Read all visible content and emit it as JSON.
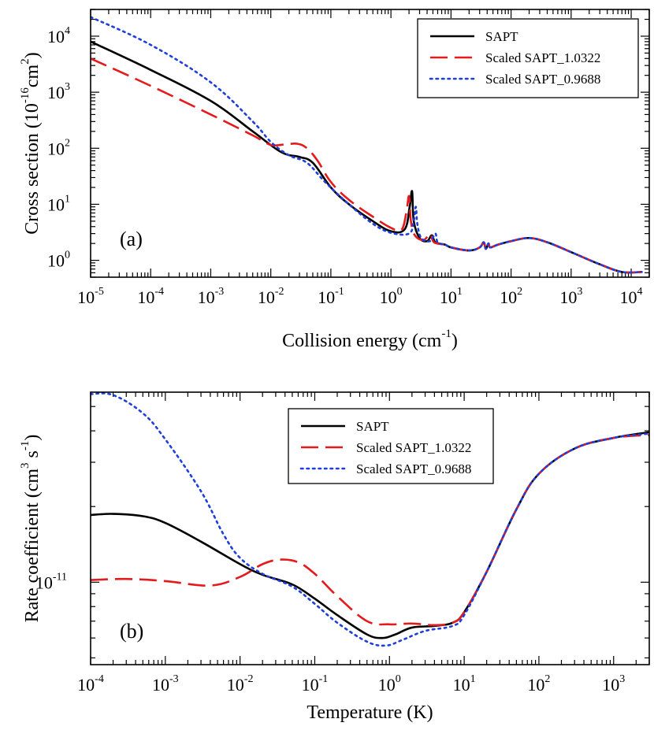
{
  "chart_data": [
    {
      "type": "line",
      "panel_label": "(a)",
      "xlabel": {
        "main": "Collision energy (cm",
        "sup": "-1",
        "tail": ")"
      },
      "ylabel": {
        "main": "Cross section (10",
        "sup": "-16",
        "mid": "cm",
        "sup2": "2",
        "tail": ")"
      },
      "xscale": "log",
      "yscale": "log",
      "xlim": [
        1e-05,
        20000.0
      ],
      "ylim": [
        0.5,
        30000.0
      ],
      "x_tick_exponents": [
        "-5",
        "-4",
        "-3",
        "-2",
        "-1",
        "0",
        "1",
        "2",
        "3",
        "4"
      ],
      "y_tick_exponents": [
        "0",
        "1",
        "2",
        "3",
        "4"
      ],
      "legend": {
        "location": "top-right",
        "entries": [
          "SAPT",
          "Scaled SAPT_1.0322",
          "Scaled SAPT_0.9688"
        ]
      },
      "series": [
        {
          "name": "SAPT",
          "color": "#000000",
          "dash": "solid",
          "points": [
            [
              1e-05,
              8000
            ],
            [
              0.0001,
              2500
            ],
            [
              0.001,
              700
            ],
            [
              0.005,
              200
            ],
            [
              0.015,
              85
            ],
            [
              0.03,
              70
            ],
            [
              0.05,
              55
            ],
            [
              0.1,
              20
            ],
            [
              0.2,
              10
            ],
            [
              0.5,
              5
            ],
            [
              1,
              3.3
            ],
            [
              1.7,
              3.6
            ],
            [
              2.05,
              9
            ],
            [
              2.25,
              17
            ],
            [
              2.4,
              5
            ],
            [
              3,
              2.5
            ],
            [
              4,
              2.2
            ],
            [
              4.8,
              2.8
            ],
            [
              5.5,
              2.1
            ],
            [
              8,
              1.9
            ],
            [
              10,
              1.7
            ],
            [
              20,
              1.5
            ],
            [
              30,
              1.7
            ],
            [
              35,
              2.1
            ],
            [
              38,
              1.6
            ],
            [
              42,
              2.0
            ],
            [
              45,
              1.7
            ],
            [
              60,
              1.9
            ],
            [
              100,
              2.2
            ],
            [
              200,
              2.5
            ],
            [
              400,
              2.1
            ],
            [
              1000,
              1.4
            ],
            [
              3000,
              0.85
            ],
            [
              7000,
              0.62
            ],
            [
              15000.0,
              0.62
            ]
          ]
        },
        {
          "name": "Scaled SAPT_1.0322",
          "color": "#e41a1c",
          "dash": "long",
          "points": [
            [
              1e-05,
              4000
            ],
            [
              0.0001,
              1300
            ],
            [
              0.001,
              400
            ],
            [
              0.005,
              170
            ],
            [
              0.01,
              115
            ],
            [
              0.018,
              118
            ],
            [
              0.028,
              120
            ],
            [
              0.04,
              100
            ],
            [
              0.06,
              60
            ],
            [
              0.1,
              25
            ],
            [
              0.2,
              12
            ],
            [
              0.5,
              6
            ],
            [
              1,
              3.8
            ],
            [
              1.5,
              3.5
            ],
            [
              1.8,
              7
            ],
            [
              2.0,
              14
            ],
            [
              2.15,
              5
            ],
            [
              2.5,
              2.8
            ],
            [
              3.5,
              2.3
            ],
            [
              4.5,
              3.0
            ],
            [
              5.2,
              2.1
            ],
            [
              8,
              1.9
            ],
            [
              10,
              1.7
            ],
            [
              20,
              1.5
            ],
            [
              30,
              1.7
            ],
            [
              35,
              2.1
            ],
            [
              38,
              1.6
            ],
            [
              42,
              2.0
            ],
            [
              45,
              1.7
            ],
            [
              60,
              1.9
            ],
            [
              100,
              2.2
            ],
            [
              200,
              2.5
            ],
            [
              400,
              2.1
            ],
            [
              1000,
              1.4
            ],
            [
              3000,
              0.85
            ],
            [
              7000,
              0.62
            ],
            [
              15000.0,
              0.62
            ]
          ]
        },
        {
          "name": "Scaled SAPT_0.9688",
          "color": "#1f3fdc",
          "dash": "dot",
          "points": [
            [
              1e-05,
              22000
            ],
            [
              0.0001,
              7000
            ],
            [
              0.001,
              1500
            ],
            [
              0.005,
              300
            ],
            [
              0.01,
              130
            ],
            [
              0.02,
              75
            ],
            [
              0.04,
              55
            ],
            [
              0.08,
              25
            ],
            [
              0.2,
              10
            ],
            [
              0.5,
              4.5
            ],
            [
              1,
              3.1
            ],
            [
              2,
              3.0
            ],
            [
              2.4,
              5
            ],
            [
              2.6,
              9
            ],
            [
              2.75,
              4.5
            ],
            [
              3.2,
              2.5
            ],
            [
              4.5,
              2.2
            ],
            [
              5.5,
              3.0
            ],
            [
              6,
              2.1
            ],
            [
              8,
              1.9
            ],
            [
              10,
              1.7
            ],
            [
              20,
              1.5
            ],
            [
              30,
              1.7
            ],
            [
              35,
              2.1
            ],
            [
              38,
              1.6
            ],
            [
              42,
              2.0
            ],
            [
              45,
              1.7
            ],
            [
              60,
              1.9
            ],
            [
              100,
              2.2
            ],
            [
              200,
              2.5
            ],
            [
              400,
              2.1
            ],
            [
              1000,
              1.4
            ],
            [
              3000,
              0.85
            ],
            [
              7000,
              0.62
            ],
            [
              15000.0,
              0.62
            ]
          ]
        }
      ]
    },
    {
      "type": "line",
      "panel_label": "(b)",
      "xlabel": {
        "main": "Temperature (K)"
      },
      "ylabel": {
        "main": "Rate coefficient (cm",
        "sup": "3",
        "mid": " s",
        "sup2": "-1",
        "tail": ")"
      },
      "xscale": "log",
      "yscale": "log",
      "xlim": [
        0.0001,
        3000
      ],
      "ylim": [
        4.7e-12,
        5.7e-11
      ],
      "x_tick_exponents": [
        "-4",
        "-3",
        "-2",
        "-1",
        "0",
        "1",
        "2",
        "3"
      ],
      "y_tick_label": {
        "base": "10",
        "sup": "-11",
        "value": 1e-11
      },
      "legend": {
        "location": "top-center",
        "entries": [
          "SAPT",
          "Scaled SAPT_1.0322",
          "Scaled SAPT_0.9688"
        ]
      },
      "series": [
        {
          "name": "SAPT",
          "color": "#000000",
          "dash": "solid",
          "points": [
            [
              0.0001,
              1.85e-11
            ],
            [
              0.0002,
              1.87e-11
            ],
            [
              0.0005,
              1.83e-11
            ],
            [
              0.001,
              1.72e-11
            ],
            [
              0.003,
              1.45e-11
            ],
            [
              0.01,
              1.18e-11
            ],
            [
              0.02,
              1.07e-11
            ],
            [
              0.05,
              9.8e-12
            ],
            [
              0.1,
              8.6e-12
            ],
            [
              0.2,
              7.4e-12
            ],
            [
              0.5,
              6.2e-12
            ],
            [
              0.8,
              6e-12
            ],
            [
              1.2,
              6.2e-12
            ],
            [
              2,
              6.6e-12
            ],
            [
              4,
              6.7e-12
            ],
            [
              7,
              6.9e-12
            ],
            [
              10,
              7.6e-12
            ],
            [
              20,
              1.1e-11
            ],
            [
              50,
              1.95e-11
            ],
            [
              100,
              2.7e-11
            ],
            [
              300,
              3.4e-11
            ],
            [
              1000,
              3.75e-11
            ],
            [
              3000,
              3.95e-11
            ]
          ]
        },
        {
          "name": "Scaled SAPT_1.0322",
          "color": "#e41a1c",
          "dash": "long",
          "points": [
            [
              0.0001,
              1.02e-11
            ],
            [
              0.0003,
              1.03e-11
            ],
            [
              0.001,
              1.01e-11
            ],
            [
              0.004,
              9.7e-12
            ],
            [
              0.01,
              1.05e-11
            ],
            [
              0.02,
              1.18e-11
            ],
            [
              0.035,
              1.23e-11
            ],
            [
              0.06,
              1.2e-11
            ],
            [
              0.1,
              1.08e-11
            ],
            [
              0.2,
              8.8e-12
            ],
            [
              0.5,
              7e-12
            ],
            [
              1,
              6.8e-12
            ],
            [
              2,
              6.85e-12
            ],
            [
              4,
              6.75e-12
            ],
            [
              7,
              6.9e-12
            ],
            [
              10,
              7.6e-12
            ],
            [
              20,
              1.1e-11
            ],
            [
              50,
              1.95e-11
            ],
            [
              100,
              2.7e-11
            ],
            [
              300,
              3.4e-11
            ],
            [
              1000,
              3.75e-11
            ],
            [
              3000,
              3.85e-11
            ]
          ]
        },
        {
          "name": "Scaled SAPT_0.9688",
          "color": "#1f3fdc",
          "dash": "dot",
          "points": [
            [
              0.0001,
              5.6e-11
            ],
            [
              0.0002,
              5.55e-11
            ],
            [
              0.0005,
              4.7e-11
            ],
            [
              0.001,
              3.7e-11
            ],
            [
              0.003,
              2.3e-11
            ],
            [
              0.006,
              1.55e-11
            ],
            [
              0.01,
              1.25e-11
            ],
            [
              0.02,
              1.08e-11
            ],
            [
              0.05,
              9.6e-12
            ],
            [
              0.1,
              8.2e-12
            ],
            [
              0.2,
              6.9e-12
            ],
            [
              0.5,
              5.8e-12
            ],
            [
              0.9,
              5.6e-12
            ],
            [
              1.5,
              5.9e-12
            ],
            [
              3,
              6.4e-12
            ],
            [
              7,
              6.7e-12
            ],
            [
              10,
              7.4e-12
            ],
            [
              20,
              1.1e-11
            ],
            [
              50,
              1.95e-11
            ],
            [
              100,
              2.7e-11
            ],
            [
              300,
              3.4e-11
            ],
            [
              1000,
              3.75e-11
            ],
            [
              3000,
              3.9e-11
            ]
          ]
        }
      ]
    }
  ]
}
